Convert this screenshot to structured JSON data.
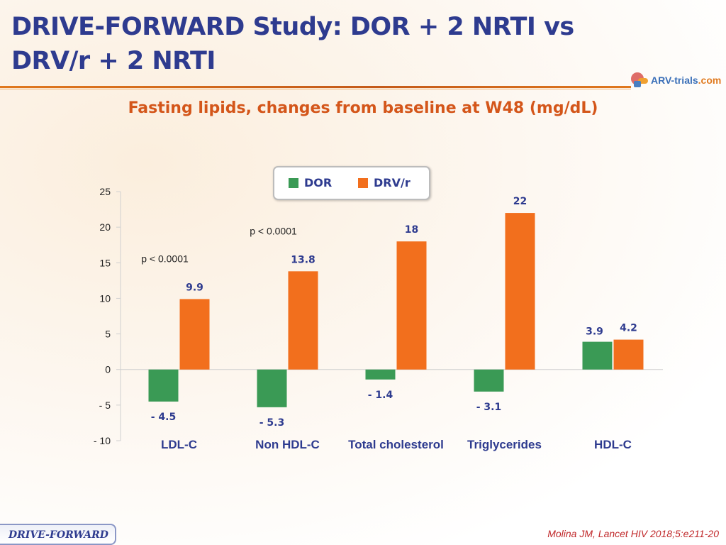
{
  "slide": {
    "title": "DRIVE-FORWARD Study: DOR + 2 NRTI vs DRV/r + 2 NRTI",
    "logo_text_main": "ARV-trials",
    "logo_text_accent": ".com",
    "footer_label": "DRIVE-FORWARD",
    "citation": "Molina JM, Lancet HIV 2018;5:e211-20"
  },
  "colors": {
    "title": "#2e3b8f",
    "subtitle": "#d4561a",
    "dor": "#3a9a55",
    "drv": "#f26f1d",
    "value_label": "#2e3b8f"
  },
  "chart_data": {
    "type": "bar",
    "title": "Fasting lipids, changes from baseline at W48 (mg/dL)",
    "categories": [
      "LDL-C",
      "Non HDL-C",
      "Total cholesterol",
      "Triglycerides",
      "HDL-C"
    ],
    "series": [
      {
        "name": "DOR",
        "values": [
          -4.5,
          -5.3,
          -1.4,
          -3.1,
          3.9
        ],
        "color": "#3a9a55"
      },
      {
        "name": "DRV/r",
        "values": [
          9.9,
          13.8,
          18,
          22,
          4.2
        ],
        "color": "#f26f1d"
      }
    ],
    "data_labels": {
      "DOR": [
        "- 4.5",
        "- 5.3",
        "- 1.4",
        "- 3.1",
        "3.9"
      ],
      "DRV/r": [
        "9.9",
        "13.8",
        "18",
        "22",
        "4.2"
      ]
    },
    "yticks": [
      25,
      20,
      15,
      10,
      5,
      0,
      -5,
      -10
    ],
    "ytick_labels": [
      "25",
      "20",
      "15",
      "10",
      "5",
      "0",
      "- 5",
      "- 10"
    ],
    "ylim": [
      -10,
      25
    ],
    "annotations": [
      {
        "category": "LDL-C",
        "text": "p < 0.0001"
      },
      {
        "category": "Non HDL-C",
        "text": "p < 0.0001"
      }
    ],
    "legend_position": "top-center",
    "grid": false
  }
}
